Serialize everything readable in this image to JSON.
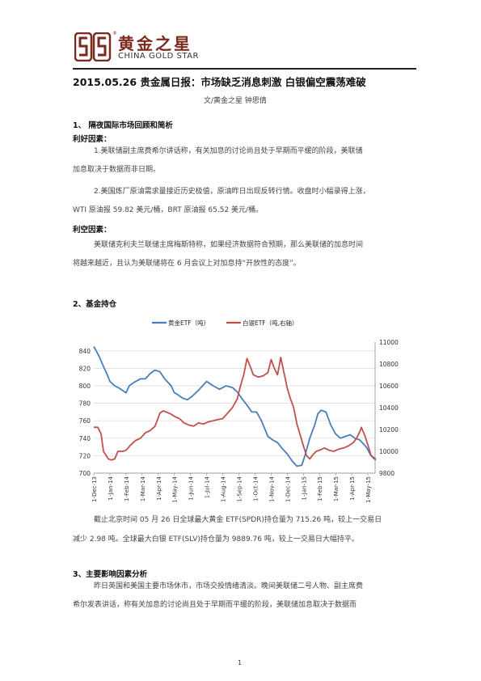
{
  "header": {
    "logo_cn": "黄金之星",
    "logo_en": "CHINA GOLD STAR",
    "logo_mark": "®"
  },
  "article": {
    "title": "2015.05.26 贵金属日报：市场缺乏消息刺激   白银偏空震荡难破",
    "author": "文/黄金之星   钟思倩"
  },
  "sections": {
    "s1": {
      "heading": "1、 隔夜国际市场回顾和简析",
      "bull_label": "利好因素：",
      "bull_p1_l1": "1.美联储副主席费希尔讲话称，有关加息的讨论尚且处于早期而平缓的阶段，美联储",
      "bull_p1_l2": "加息取决于数据而非日期。",
      "bull_p2_l1": "2.美国炼厂原油需求量接近历史极值，原油昨日出现反转行情。收盘时小幅录得上涨，",
      "bull_p2_l2": "WTI 原油报 59.82 美元/桶，BRT 原油报 65.52 美元/桶。",
      "bear_label": "利空因素：",
      "bear_p1_l1": "美联储克利夫兰联储主席梅斯特称，如果经济数据符合预期，那么美联储的加息时间",
      "bear_p1_l2": "将越来越近，且认为美联储将在 6 月会议上对加息持“开放性的态度”。"
    },
    "s2": {
      "heading": "2、基金持仓",
      "p_l1": "截止北京时间 05 月 26 日全球最大黄金 ETF(SPDR)持仓量为 715.26 吨，较上一交易日",
      "p_l2": "减少 2.98 吨。全球最大白银 ETF(SLV)持仓量为 9889.76 吨，较上一交易日大幅持平。"
    },
    "s3": {
      "heading": "3、主要影响因素分析",
      "p_l1": "昨日英国和美国主要市场休市，市场交投情绪清淡。晚间美联储二号人物、副主席费",
      "p_l2": "希尔发表讲话，称有关加息的讨论尚且处于早期而平缓的阶段，美联储加息取决于数据而"
    }
  },
  "page_number": "1",
  "chart_data": {
    "type": "line",
    "title": "",
    "legend_position": "top",
    "x_tick_labels": [
      "1-Dec-13",
      "1-Jan-14",
      "1-Feb-14",
      "1-Mar-14",
      "1-Apr-14",
      "1-May-14",
      "1-Jun-14",
      "1-Jul-14",
      "1-Aug-14",
      "1-Sep-14",
      "1-Oct-14",
      "1-Nov-14",
      "1-Dec-14",
      "1-Jan-15",
      "1-Feb-15",
      "1-Mar-15",
      "1-Apr-15",
      "1-May-15"
    ],
    "y_left": {
      "ticks": [
        700,
        720,
        740,
        760,
        780,
        800,
        820,
        840
      ],
      "range": [
        700,
        850
      ]
    },
    "y_right": {
      "ticks": [
        9800,
        10000,
        10200,
        10400,
        10600,
        10800,
        11000
      ],
      "range": [
        9800,
        11000
      ]
    },
    "grid": "horizontal",
    "series": [
      {
        "name": "黄金ETF（吨）",
        "axis": "left",
        "color": "#4a7ebb",
        "points": [
          [
            0,
            845
          ],
          [
            0.15,
            840
          ],
          [
            0.35,
            833
          ],
          [
            0.6,
            822
          ],
          [
            0.85,
            812
          ],
          [
            1.0,
            805
          ],
          [
            1.3,
            800
          ],
          [
            1.6,
            797
          ],
          [
            2.0,
            792
          ],
          [
            2.2,
            800
          ],
          [
            2.5,
            804
          ],
          [
            2.9,
            808
          ],
          [
            3.2,
            808
          ],
          [
            3.5,
            814
          ],
          [
            3.8,
            818
          ],
          [
            4.1,
            816
          ],
          [
            4.4,
            808
          ],
          [
            4.8,
            800
          ],
          [
            5.0,
            792
          ],
          [
            5.2,
            790
          ],
          [
            5.5,
            786
          ],
          [
            5.8,
            784
          ],
          [
            6.1,
            788
          ],
          [
            6.5,
            795
          ],
          [
            7.0,
            805
          ],
          [
            7.4,
            800
          ],
          [
            7.8,
            796
          ],
          [
            8.2,
            800
          ],
          [
            8.6,
            798
          ],
          [
            8.9,
            793
          ],
          [
            9.2,
            785
          ],
          [
            9.5,
            778
          ],
          [
            9.8,
            770
          ],
          [
            10.1,
            770
          ],
          [
            10.4,
            760
          ],
          [
            10.8,
            742
          ],
          [
            11.1,
            738
          ],
          [
            11.4,
            735
          ],
          [
            11.7,
            728
          ],
          [
            12.0,
            722
          ],
          [
            12.3,
            714
          ],
          [
            12.6,
            708
          ],
          [
            12.9,
            709
          ],
          [
            13.1,
            720
          ],
          [
            13.4,
            740
          ],
          [
            13.7,
            755
          ],
          [
            13.9,
            768
          ],
          [
            14.1,
            772
          ],
          [
            14.4,
            770
          ],
          [
            14.7,
            755
          ],
          [
            15.0,
            745
          ],
          [
            15.3,
            740
          ],
          [
            15.6,
            742
          ],
          [
            15.9,
            744
          ],
          [
            16.2,
            740
          ],
          [
            16.5,
            738
          ],
          [
            16.9,
            730
          ],
          [
            17.2,
            720
          ],
          [
            17.5,
            716
          ]
        ]
      },
      {
        "name": "白银ETF（吨,右轴）",
        "axis": "right",
        "color": "#c0504d",
        "points": [
          [
            0,
            10220
          ],
          [
            0.25,
            10220
          ],
          [
            0.45,
            10160
          ],
          [
            0.6,
            10000
          ],
          [
            0.9,
            9930
          ],
          [
            1.1,
            9920
          ],
          [
            1.3,
            9930
          ],
          [
            1.5,
            10000
          ],
          [
            1.8,
            10000
          ],
          [
            2.0,
            10010
          ],
          [
            2.3,
            10060
          ],
          [
            2.6,
            10100
          ],
          [
            2.9,
            10120
          ],
          [
            3.2,
            10170
          ],
          [
            3.5,
            10190
          ],
          [
            3.8,
            10230
          ],
          [
            4.1,
            10350
          ],
          [
            4.3,
            10370
          ],
          [
            4.5,
            10360
          ],
          [
            4.8,
            10340
          ],
          [
            5.0,
            10320
          ],
          [
            5.3,
            10300
          ],
          [
            5.6,
            10260
          ],
          [
            5.9,
            10240
          ],
          [
            6.2,
            10230
          ],
          [
            6.5,
            10260
          ],
          [
            6.8,
            10250
          ],
          [
            7.1,
            10270
          ],
          [
            7.4,
            10280
          ],
          [
            7.7,
            10290
          ],
          [
            8.0,
            10300
          ],
          [
            8.3,
            10350
          ],
          [
            8.6,
            10400
          ],
          [
            8.9,
            10480
          ],
          [
            9.1,
            10600
          ],
          [
            9.3,
            10700
          ],
          [
            9.5,
            10850
          ],
          [
            9.7,
            10780
          ],
          [
            9.9,
            10700
          ],
          [
            10.2,
            10680
          ],
          [
            10.5,
            10690
          ],
          [
            10.8,
            10720
          ],
          [
            11.0,
            10840
          ],
          [
            11.2,
            10760
          ],
          [
            11.4,
            10700
          ],
          [
            11.6,
            10860
          ],
          [
            11.8,
            10720
          ],
          [
            12.0,
            10580
          ],
          [
            12.2,
            10480
          ],
          [
            12.4,
            10400
          ],
          [
            12.6,
            10250
          ],
          [
            12.8,
            10150
          ],
          [
            13.0,
            10050
          ],
          [
            13.2,
            9960
          ],
          [
            13.4,
            9930
          ],
          [
            13.6,
            9970
          ],
          [
            13.8,
            10000
          ],
          [
            14.0,
            10010
          ],
          [
            14.3,
            10030
          ],
          [
            14.6,
            10010
          ],
          [
            14.9,
            10000
          ],
          [
            15.2,
            10020
          ],
          [
            15.5,
            10030
          ],
          [
            15.8,
            10050
          ],
          [
            16.1,
            10080
          ],
          [
            16.3,
            10120
          ],
          [
            16.5,
            10180
          ],
          [
            16.6,
            10220
          ],
          [
            16.8,
            10150
          ],
          [
            17.0,
            10060
          ],
          [
            17.2,
            9960
          ],
          [
            17.4,
            9930
          ],
          [
            17.5,
            9920
          ]
        ]
      }
    ]
  }
}
